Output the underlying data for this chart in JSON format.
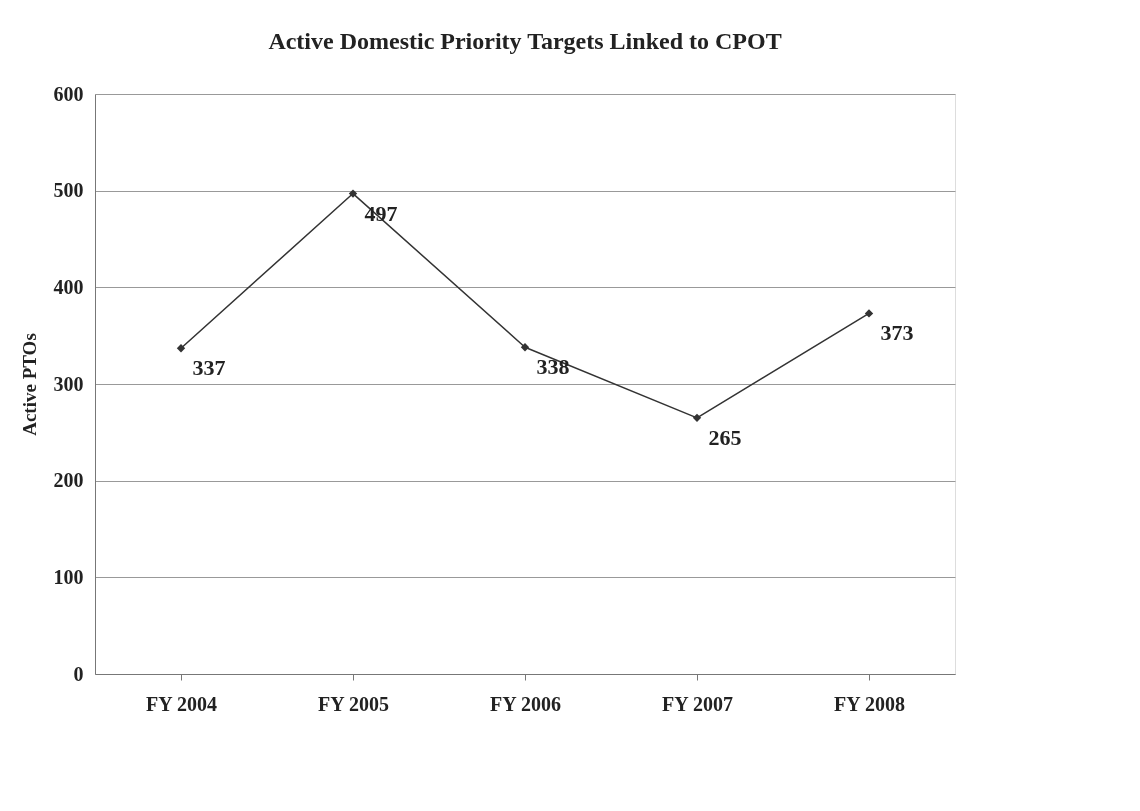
{
  "chart_data": {
    "type": "line",
    "title": "Active Domestic Priority Targets Linked to CPOT",
    "ylabel": "Active PTOs",
    "categories": [
      "FY 2004",
      "FY 2005",
      "FY 2006",
      "FY 2007",
      "FY 2008"
    ],
    "series": [
      {
        "color": "#333333",
        "values": [
          337,
          497,
          338,
          265,
          373
        ]
      }
    ],
    "ylim": [
      0,
      600
    ],
    "yticks": [
      0,
      100,
      200,
      300,
      400,
      500,
      600
    ],
    "grid": "y",
    "marker": "diamond",
    "line_style": "solid",
    "data_labels": true
  }
}
